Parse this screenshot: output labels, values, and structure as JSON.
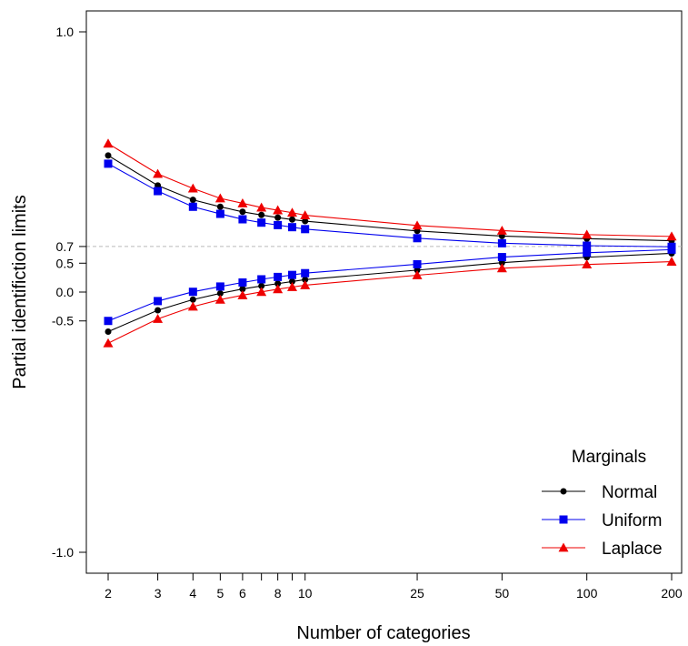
{
  "chart_data": {
    "type": "line",
    "title": "",
    "xlabel": "Number of categories",
    "ylabel": "Partial identifiction limits",
    "x_scale": "log",
    "x": [
      2,
      3,
      4,
      5,
      6,
      7,
      8,
      9,
      10,
      25,
      50,
      100,
      200
    ],
    "x_tick_labels": [
      "2",
      "3",
      "4",
      "5",
      "6",
      "8",
      "10",
      "25",
      "50",
      "100",
      "200"
    ],
    "x_tick_values": [
      2,
      3,
      4,
      5,
      6,
      8,
      10,
      25,
      50,
      100,
      200
    ],
    "x_minor_ticks": [
      7,
      9
    ],
    "y_scale": "fisher-z",
    "y_tick_labels": [
      "-1.0",
      "-0.5",
      "0.0",
      "0.5",
      "0.7",
      "1.0"
    ],
    "y_tick_values": [
      -0.9999,
      -0.5,
      0.0,
      0.5,
      0.7,
      0.9999
    ],
    "reference_line": {
      "y": 0.7,
      "style": "dashed",
      "color": "#bbbbbb"
    },
    "grid": false,
    "legend": {
      "title": "Marginals",
      "position": "bottom-right"
    },
    "series": [
      {
        "name": "Normal",
        "color": "#000000",
        "marker": "circle",
        "upper": [
          0.989,
          0.966,
          0.942,
          0.925,
          0.91,
          0.899,
          0.889,
          0.881,
          0.874,
          0.822,
          0.788,
          0.768,
          0.752
        ],
        "lower": [
          -0.637,
          -0.333,
          -0.142,
          -0.025,
          0.059,
          0.115,
          0.159,
          0.198,
          0.232,
          0.395,
          0.507,
          0.58,
          0.627
        ]
      },
      {
        "name": "Uniform",
        "color": "#0000ee",
        "marker": "square",
        "upper": [
          0.985,
          0.958,
          0.925,
          0.903,
          0.882,
          0.867,
          0.855,
          0.844,
          0.833,
          0.772,
          0.73,
          0.708,
          0.697
        ],
        "lower": [
          -0.5,
          -0.17,
          0.005,
          0.105,
          0.18,
          0.238,
          0.28,
          0.315,
          0.345,
          0.485,
          0.582,
          0.634,
          0.668
        ]
      },
      {
        "name": "Laplace",
        "color": "#ee0000",
        "marker": "triangle",
        "upper": [
          0.993,
          0.978,
          0.962,
          0.945,
          0.934,
          0.923,
          0.915,
          0.907,
          0.898,
          0.853,
          0.824,
          0.798,
          0.785
        ],
        "lower": [
          -0.75,
          -0.47,
          -0.27,
          -0.143,
          -0.06,
          0.003,
          0.055,
          0.095,
          0.13,
          0.31,
          0.425,
          0.482,
          0.522
        ]
      }
    ]
  }
}
